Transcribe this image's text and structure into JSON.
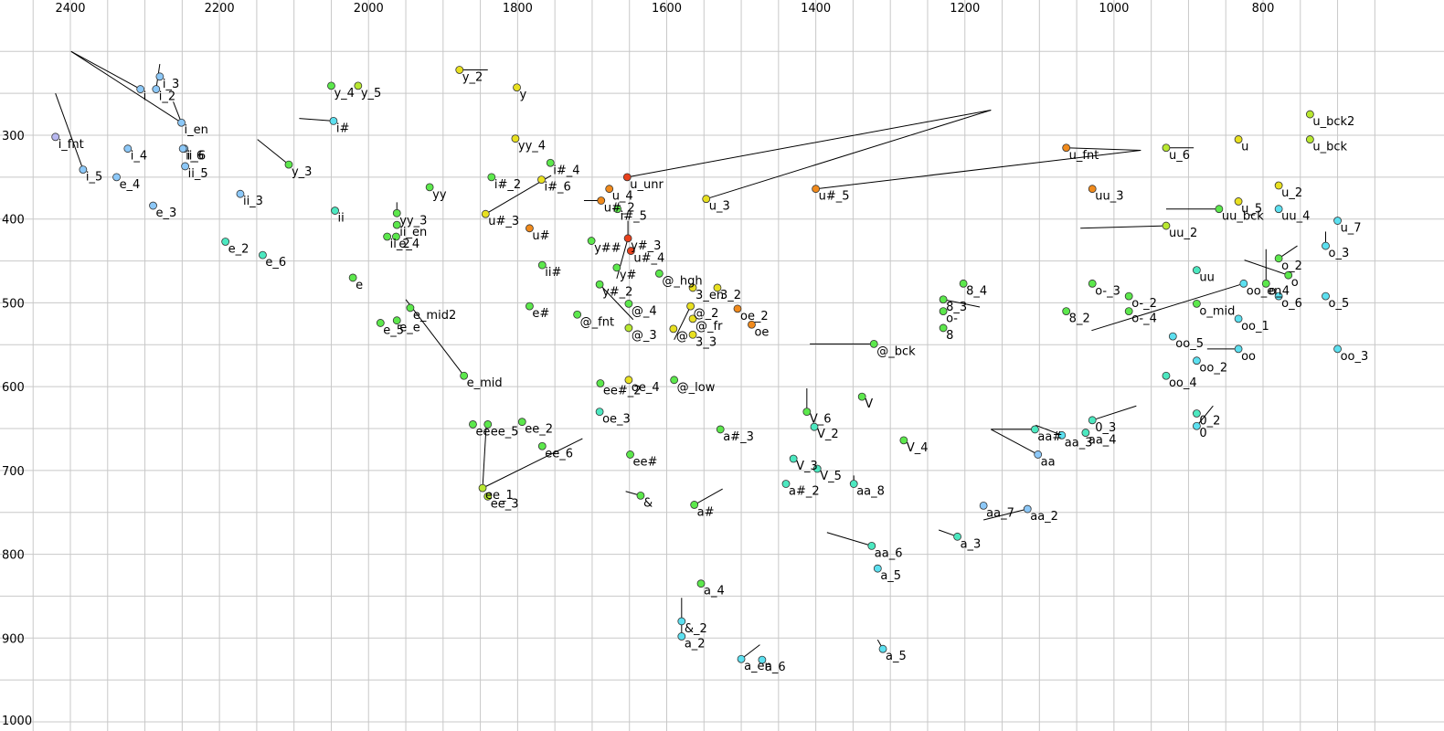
{
  "chart_data": {
    "type": "scatter",
    "xlim": [
      2450,
      700
    ],
    "ylim": [
      1000,
      200
    ],
    "x_ticks": [
      2400,
      2200,
      2000,
      1800,
      1600,
      1400,
      1200,
      1000,
      800
    ],
    "y_ticks": [
      300,
      400,
      500,
      600,
      700,
      800,
      900,
      1000
    ],
    "grid": true,
    "colors": {
      "red": "#e8401c",
      "orange": "#f08a1c",
      "yellow": "#e8e020",
      "yellowgreen": "#b8e830",
      "green": "#5ce84c",
      "aqua": "#4ce8c0",
      "cyan": "#5ce0f0",
      "blue": "#8cc8f8",
      "lavender": "#b8b8f0"
    },
    "points": [
      {
        "label": "i_fnt",
        "x": 2420,
        "y": 302,
        "color": "lavender"
      },
      {
        "label": "i_5",
        "x": 2383,
        "y": 341,
        "color": "blue"
      },
      {
        "label": "i_4",
        "x": 2323,
        "y": 316,
        "color": "blue"
      },
      {
        "label": "i",
        "x": 2306,
        "y": 245,
        "color": "blue"
      },
      {
        "label": "i_2",
        "x": 2285,
        "y": 245,
        "color": "blue"
      },
      {
        "label": "i_3",
        "x": 2280,
        "y": 230,
        "color": "blue"
      },
      {
        "label": "i_en",
        "x": 2251,
        "y": 285,
        "color": "blue"
      },
      {
        "label": "i_6",
        "x": 2247,
        "y": 316,
        "color": "blue"
      },
      {
        "label": "i#",
        "x": 2047,
        "y": 283,
        "color": "cyan"
      },
      {
        "label": "ii_6",
        "x": 2249,
        "y": 316,
        "color": "blue"
      },
      {
        "label": "ii_5",
        "x": 2246,
        "y": 337,
        "color": "blue"
      },
      {
        "label": "e_4",
        "x": 2338,
        "y": 350,
        "color": "blue"
      },
      {
        "label": "e_3",
        "x": 2289,
        "y": 384,
        "color": "blue"
      },
      {
        "label": "ii_3",
        "x": 2172,
        "y": 370,
        "color": "blue"
      },
      {
        "label": "ii",
        "x": 2045,
        "y": 390,
        "color": "aqua"
      },
      {
        "label": "e_2",
        "x": 2192,
        "y": 427,
        "color": "aqua"
      },
      {
        "label": "e_6",
        "x": 2142,
        "y": 443,
        "color": "aqua"
      },
      {
        "label": "e",
        "x": 2021,
        "y": 470,
        "color": "green"
      },
      {
        "label": "e_5",
        "x": 1984,
        "y": 524,
        "color": "green"
      },
      {
        "label": "y_4",
        "x": 2050,
        "y": 241,
        "color": "green"
      },
      {
        "label": "y_5",
        "x": 2014,
        "y": 241,
        "color": "yellowgreen"
      },
      {
        "label": "y_3",
        "x": 2107,
        "y": 335,
        "color": "green"
      },
      {
        "label": "yy",
        "x": 1918,
        "y": 362,
        "color": "green"
      },
      {
        "label": "yy_3",
        "x": 1962,
        "y": 393,
        "color": "green"
      },
      {
        "label": "ii_en",
        "x": 1962,
        "y": 407,
        "color": "green"
      },
      {
        "label": "ii_2",
        "x": 1975,
        "y": 421,
        "color": "green"
      },
      {
        "label": "e_4",
        "x": 1963,
        "y": 421,
        "color": "green"
      },
      {
        "label": "e_mid2",
        "x": 1944,
        "y": 506,
        "color": "green"
      },
      {
        "label": "e_e",
        "x": 1962,
        "y": 521,
        "color": "green"
      },
      {
        "label": "e_mid",
        "x": 1872,
        "y": 587,
        "color": "green"
      },
      {
        "label": "y_2",
        "x": 1878,
        "y": 222,
        "color": "yellow"
      },
      {
        "label": "y",
        "x": 1801,
        "y": 243,
        "color": "yellow"
      },
      {
        "label": "yy_4",
        "x": 1803,
        "y": 304,
        "color": "yellow"
      },
      {
        "label": "i#_2",
        "x": 1835,
        "y": 350,
        "color": "green"
      },
      {
        "label": "i#_4",
        "x": 1756,
        "y": 333,
        "color": "green"
      },
      {
        "label": "i#_6",
        "x": 1768,
        "y": 353,
        "color": "yellow"
      },
      {
        "label": "u#_3",
        "x": 1843,
        "y": 394,
        "color": "yellow"
      },
      {
        "label": "u#",
        "x": 1784,
        "y": 411,
        "color": "orange"
      },
      {
        "label": "y##",
        "x": 1701,
        "y": 426,
        "color": "green"
      },
      {
        "label": "ii#",
        "x": 1767,
        "y": 455,
        "color": "green"
      },
      {
        "label": "e#",
        "x": 1784,
        "y": 504,
        "color": "green"
      },
      {
        "label": "@_fnt",
        "x": 1720,
        "y": 514,
        "color": "green"
      },
      {
        "label": "ee#_2",
        "x": 1689,
        "y": 596,
        "color": "green"
      },
      {
        "label": "u_unr",
        "x": 1653,
        "y": 350,
        "color": "red"
      },
      {
        "label": "u_4",
        "x": 1677,
        "y": 364,
        "color": "orange"
      },
      {
        "label": "u#_2",
        "x": 1688,
        "y": 378,
        "color": "orange"
      },
      {
        "label": "i#_5",
        "x": 1666,
        "y": 388,
        "color": "green"
      },
      {
        "label": "y#_3",
        "x": 1652,
        "y": 423,
        "color": "red"
      },
      {
        "label": "u#_4",
        "x": 1648,
        "y": 438,
        "color": "red"
      },
      {
        "label": "y#",
        "x": 1667,
        "y": 458,
        "color": "green"
      },
      {
        "label": "y#_2",
        "x": 1690,
        "y": 478,
        "color": "green"
      },
      {
        "label": "@_hgh",
        "x": 1610,
        "y": 465,
        "color": "green"
      },
      {
        "label": "@_4",
        "x": 1651,
        "y": 501,
        "color": "green"
      },
      {
        "label": "@_3",
        "x": 1651,
        "y": 530,
        "color": "yellowgreen"
      },
      {
        "label": "oe_4",
        "x": 1651,
        "y": 592,
        "color": "yellow"
      },
      {
        "label": "@",
        "x": 1591,
        "y": 531,
        "color": "yellow"
      },
      {
        "label": "3_en",
        "x": 1565,
        "y": 482,
        "color": "yellow"
      },
      {
        "label": "3_2",
        "x": 1532,
        "y": 482,
        "color": "yellow"
      },
      {
        "label": "@_2",
        "x": 1568,
        "y": 504,
        "color": "yellow"
      },
      {
        "label": "@_fr",
        "x": 1565,
        "y": 519,
        "color": "yellow"
      },
      {
        "label": "3_3",
        "x": 1565,
        "y": 538,
        "color": "yellow"
      },
      {
        "label": "oe_2",
        "x": 1505,
        "y": 507,
        "color": "orange"
      },
      {
        "label": "oe",
        "x": 1486,
        "y": 526,
        "color": "orange"
      },
      {
        "label": "@_low",
        "x": 1590,
        "y": 592,
        "color": "green"
      },
      {
        "label": "u_3",
        "x": 1547,
        "y": 376,
        "color": "yellow"
      },
      {
        "label": "u#_5",
        "x": 1400,
        "y": 364,
        "color": "orange"
      },
      {
        "label": "u_fnt",
        "x": 1064,
        "y": 315,
        "color": "orange"
      },
      {
        "label": "uu_3",
        "x": 1029,
        "y": 364,
        "color": "orange"
      },
      {
        "label": "u_6",
        "x": 930,
        "y": 315,
        "color": "yellowgreen"
      },
      {
        "label": "u",
        "x": 833,
        "y": 305,
        "color": "yellow"
      },
      {
        "label": "u_bck2",
        "x": 737,
        "y": 275,
        "color": "yellowgreen"
      },
      {
        "label": "u_bck",
        "x": 737,
        "y": 305,
        "color": "yellowgreen"
      },
      {
        "label": "u_2",
        "x": 779,
        "y": 360,
        "color": "yellow"
      },
      {
        "label": "u_5",
        "x": 833,
        "y": 379,
        "color": "yellow"
      },
      {
        "label": "uu_bck",
        "x": 859,
        "y": 388,
        "color": "green"
      },
      {
        "label": "uu_4",
        "x": 779,
        "y": 388,
        "color": "cyan"
      },
      {
        "label": "uu_2",
        "x": 930,
        "y": 408,
        "color": "yellowgreen"
      },
      {
        "label": "u_7",
        "x": 700,
        "y": 402,
        "color": "cyan"
      },
      {
        "label": "o_3",
        "x": 716,
        "y": 432,
        "color": "cyan"
      },
      {
        "label": "o_2",
        "x": 779,
        "y": 447,
        "color": "green"
      },
      {
        "label": "uu",
        "x": 889,
        "y": 461,
        "color": "aqua"
      },
      {
        "label": "o",
        "x": 766,
        "y": 467,
        "color": "green"
      },
      {
        "label": "oo_en",
        "x": 826,
        "y": 477,
        "color": "cyan"
      },
      {
        "label": "o_4",
        "x": 796,
        "y": 477,
        "color": "green"
      },
      {
        "label": "o_6",
        "x": 779,
        "y": 492,
        "color": "cyan"
      },
      {
        "label": "o_5",
        "x": 716,
        "y": 492,
        "color": "cyan"
      },
      {
        "label": "o_mid",
        "x": 889,
        "y": 501,
        "color": "green"
      },
      {
        "label": "o-_3",
        "x": 1029,
        "y": 477,
        "color": "green"
      },
      {
        "label": "o-_2",
        "x": 980,
        "y": 492,
        "color": "green"
      },
      {
        "label": "o-_4",
        "x": 980,
        "y": 510,
        "color": "green"
      },
      {
        "label": "8_2",
        "x": 1064,
        "y": 510,
        "color": "green"
      },
      {
        "label": "8_4",
        "x": 1202,
        "y": 477,
        "color": "green"
      },
      {
        "label": "8_3",
        "x": 1229,
        "y": 496,
        "color": "green"
      },
      {
        "label": "o-",
        "x": 1229,
        "y": 510,
        "color": "green"
      },
      {
        "label": "8",
        "x": 1229,
        "y": 530,
        "color": "green"
      },
      {
        "label": "@_bck",
        "x": 1322,
        "y": 549,
        "color": "green"
      },
      {
        "label": "oo_1",
        "x": 833,
        "y": 519,
        "color": "cyan"
      },
      {
        "label": "oo_5",
        "x": 921,
        "y": 540,
        "color": "cyan"
      },
      {
        "label": "oo",
        "x": 833,
        "y": 555,
        "color": "cyan"
      },
      {
        "label": "oo_2",
        "x": 889,
        "y": 569,
        "color": "cyan"
      },
      {
        "label": "oo_3",
        "x": 700,
        "y": 555,
        "color": "cyan"
      },
      {
        "label": "oo_4",
        "x": 930,
        "y": 587,
        "color": "aqua"
      },
      {
        "label": "0_2",
        "x": 889,
        "y": 632,
        "color": "aqua"
      },
      {
        "label": "0",
        "x": 889,
        "y": 647,
        "color": "cyan"
      },
      {
        "label": "0_3",
        "x": 1029,
        "y": 640,
        "color": "aqua"
      },
      {
        "label": "aa_4",
        "x": 1038,
        "y": 655,
        "color": "aqua"
      },
      {
        "label": "aa_3",
        "x": 1070,
        "y": 658,
        "color": "cyan"
      },
      {
        "label": "aa#",
        "x": 1106,
        "y": 651,
        "color": "aqua"
      },
      {
        "label": "aa",
        "x": 1102,
        "y": 681,
        "color": "blue"
      },
      {
        "label": "V",
        "x": 1338,
        "y": 612,
        "color": "green"
      },
      {
        "label": "V_6",
        "x": 1412,
        "y": 630,
        "color": "green"
      },
      {
        "label": "V_2",
        "x": 1402,
        "y": 648,
        "color": "aqua"
      },
      {
        "label": "V_4",
        "x": 1282,
        "y": 664,
        "color": "green"
      },
      {
        "label": "V_3",
        "x": 1430,
        "y": 686,
        "color": "aqua"
      },
      {
        "label": "V_5",
        "x": 1398,
        "y": 698,
        "color": "aqua"
      },
      {
        "label": "a#_3",
        "x": 1528,
        "y": 651,
        "color": "green"
      },
      {
        "label": "a#_2",
        "x": 1440,
        "y": 716,
        "color": "aqua"
      },
      {
        "label": "aa_8",
        "x": 1349,
        "y": 716,
        "color": "aqua"
      },
      {
        "label": "a#",
        "x": 1563,
        "y": 741,
        "color": "green"
      },
      {
        "label": "oe_3",
        "x": 1690,
        "y": 630,
        "color": "aqua"
      },
      {
        "label": "ee#",
        "x": 1649,
        "y": 681,
        "color": "green"
      },
      {
        "label": "ee_6",
        "x": 1767,
        "y": 671,
        "color": "green"
      },
      {
        "label": "ee_2",
        "x": 1794,
        "y": 642,
        "color": "green"
      },
      {
        "label": "ee_5",
        "x": 1840,
        "y": 645,
        "color": "green"
      },
      {
        "label": "ee",
        "x": 1860,
        "y": 645,
        "color": "green"
      },
      {
        "label": "ee_1",
        "x": 1847,
        "y": 721,
        "color": "yellowgreen"
      },
      {
        "label": "ee_3",
        "x": 1840,
        "y": 731,
        "color": "yellowgreen"
      },
      {
        "label": "&",
        "x": 1635,
        "y": 730,
        "color": "green"
      },
      {
        "label": "aa_7",
        "x": 1175,
        "y": 742,
        "color": "blue"
      },
      {
        "label": "aa_2",
        "x": 1116,
        "y": 746,
        "color": "blue"
      },
      {
        "label": "a_3",
        "x": 1210,
        "y": 779,
        "color": "aqua"
      },
      {
        "label": "aa_6",
        "x": 1325,
        "y": 790,
        "color": "aqua"
      },
      {
        "label": "a_5",
        "x": 1317,
        "y": 817,
        "color": "cyan"
      },
      {
        "label": "a_4",
        "x": 1554,
        "y": 835,
        "color": "green"
      },
      {
        "label": "&_2",
        "x": 1580,
        "y": 880,
        "color": "cyan"
      },
      {
        "label": "a_2",
        "x": 1580,
        "y": 898,
        "color": "cyan"
      },
      {
        "label": "a_5",
        "x": 1310,
        "y": 913,
        "color": "cyan"
      },
      {
        "label": "a_en",
        "x": 1500,
        "y": 925,
        "color": "cyan"
      },
      {
        "label": "a_6",
        "x": 1472,
        "y": 926,
        "color": "cyan"
      }
    ],
    "segments": [
      [
        2420,
        250,
        2383,
        341
      ],
      [
        2399,
        200,
        2306,
        245
      ],
      [
        2399,
        200,
        2251,
        285
      ],
      [
        2280,
        215,
        2285,
        245
      ],
      [
        2262,
        260,
        2251,
        285
      ],
      [
        2093,
        280,
        2047,
        283
      ],
      [
        2149,
        305,
        2107,
        335
      ],
      [
        1962,
        380,
        1962,
        393
      ],
      [
        1950,
        496,
        1872,
        587
      ],
      [
        1840,
        222,
        1878,
        222
      ],
      [
        1843,
        394,
        1755,
        348
      ],
      [
        1653,
        350,
        1165,
        270
      ],
      [
        1547,
        376,
        1165,
        270
      ],
      [
        1400,
        364,
        964,
        318
      ],
      [
        1064,
        315,
        964,
        318
      ],
      [
        930,
        315,
        893,
        315
      ],
      [
        1688,
        378,
        1711,
        378
      ],
      [
        1652,
        423,
        1652,
        402
      ],
      [
        1652,
        423,
        1667,
        471
      ],
      [
        1690,
        478,
        1645,
        520
      ],
      [
        1590,
        544,
        1568,
        504
      ],
      [
        1322,
        549,
        1408,
        549
      ],
      [
        1180,
        505,
        1229,
        496
      ],
      [
        833,
        555,
        875,
        555
      ],
      [
        859,
        388,
        930,
        388
      ],
      [
        930,
        408,
        1045,
        411
      ],
      [
        826,
        477,
        1030,
        533
      ],
      [
        779,
        447,
        754,
        432
      ],
      [
        796,
        477,
        796,
        436
      ],
      [
        766,
        467,
        825,
        449
      ],
      [
        716,
        432,
        716,
        415
      ],
      [
        889,
        647,
        867,
        623
      ],
      [
        1029,
        640,
        970,
        623
      ],
      [
        1070,
        658,
        1105,
        646
      ],
      [
        1102,
        681,
        1165,
        651
      ],
      [
        1106,
        651,
        1165,
        651
      ],
      [
        1412,
        630,
        1412,
        602
      ],
      [
        1349,
        716,
        1349,
        706
      ],
      [
        1563,
        741,
        1525,
        722
      ],
      [
        1847,
        721,
        1713,
        662
      ],
      [
        1847,
        721,
        1842,
        645
      ],
      [
        1635,
        730,
        1655,
        725
      ],
      [
        1116,
        746,
        1175,
        759
      ],
      [
        1210,
        779,
        1235,
        771
      ],
      [
        1325,
        790,
        1385,
        774
      ],
      [
        1310,
        913,
        1317,
        902
      ],
      [
        1500,
        925,
        1475,
        908
      ],
      [
        1580,
        880,
        1580,
        852
      ],
      [
        1580,
        898,
        1580,
        880
      ]
    ]
  }
}
